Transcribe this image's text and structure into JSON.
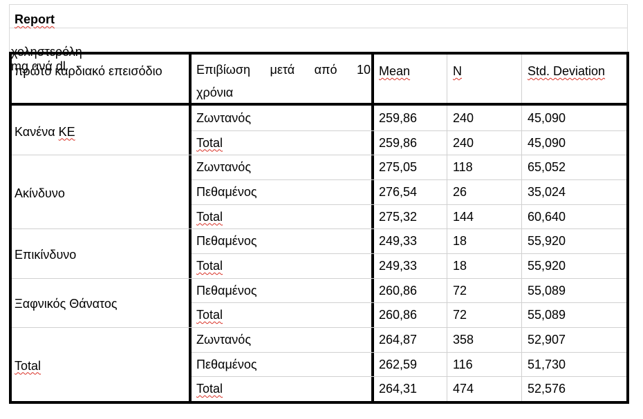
{
  "report": {
    "title": "Report",
    "subtitle": "χοληστερόλη mg ανά dl"
  },
  "headers": {
    "group": "πρώτο καρδιακό επεισόδιο",
    "survival_words": [
      "Επιβίωση",
      "μετά",
      "από",
      "10"
    ],
    "survival_line2": "χρόνια",
    "mean": "Mean",
    "n": "N",
    "std": "Std. Deviation"
  },
  "groups": [
    {
      "label": "Κανένα ΚΕ",
      "rows": [
        {
          "status": "Ζωντανός",
          "mean": "259,86",
          "n": "240",
          "std": "45,090"
        },
        {
          "status": "Total",
          "mean": "259,86",
          "n": "240",
          "std": "45,090"
        }
      ]
    },
    {
      "label": "Ακίνδυνο",
      "rows": [
        {
          "status": "Ζωντανός",
          "mean": "275,05",
          "n": "118",
          "std": "65,052"
        },
        {
          "status": "Πεθαμένος",
          "mean": "276,54",
          "n": "26",
          "std": "35,024"
        },
        {
          "status": "Total",
          "mean": "275,32",
          "n": "144",
          "std": "60,640"
        }
      ]
    },
    {
      "label": "Επικίνδυνο",
      "rows": [
        {
          "status": "Πεθαμένος",
          "mean": "249,33",
          "n": "18",
          "std": "55,920"
        },
        {
          "status": "Total",
          "mean": "249,33",
          "n": "18",
          "std": "55,920"
        }
      ]
    },
    {
      "label": "Ξαφνικός Θάνατος",
      "rows": [
        {
          "status": "Πεθαμένος",
          "mean": "260,86",
          "n": "72",
          "std": "55,089"
        },
        {
          "status": "Total",
          "mean": "260,86",
          "n": "72",
          "std": "55,089"
        }
      ]
    },
    {
      "label": "Total",
      "rows": [
        {
          "status": "Ζωντανός",
          "mean": "264,87",
          "n": "358",
          "std": "52,907"
        },
        {
          "status": "Πεθαμένος",
          "mean": "262,59",
          "n": "116",
          "std": "51,730"
        },
        {
          "status": "Total",
          "mean": "264,31",
          "n": "474",
          "std": "52,576"
        }
      ]
    }
  ]
}
